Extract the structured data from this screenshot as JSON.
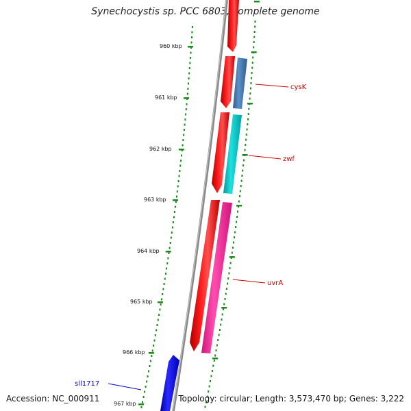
{
  "title": "Synechocystis sp. PCC 6803, complete genome",
  "accession": "Accession: NC_000911",
  "summary": "Topology: circular; Length: 3,573,470 bp; Genes: 3,222",
  "ticks": [
    "960 kbp",
    "961 kbp",
    "962 kbp",
    "963 kbp",
    "964 kbp",
    "965 kbp",
    "966 kbp",
    "967 kbp"
  ],
  "genes": [
    {
      "name": "cysK",
      "color": "#cc0000"
    },
    {
      "name": "zwf",
      "color": "#cc0000"
    },
    {
      "name": "uvrA",
      "color": "#cc0000"
    },
    {
      "name": "sll1717",
      "color": "#0000cc"
    }
  ],
  "colors": {
    "forward_strand": "#ff0000",
    "cysK_feature": "#4a7fb5",
    "zwf_feature": "#00c8c8",
    "uvrA_feature": "#ff2aa0",
    "reverse_strand": "#0000ee",
    "backbone": "#8c8c8c",
    "ruler": "#1a8a1a"
  }
}
